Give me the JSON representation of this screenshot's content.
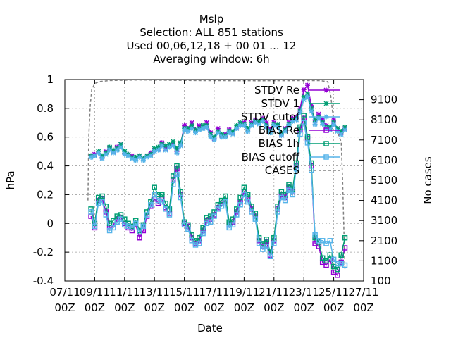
{
  "chart_data": {
    "type": "line",
    "title_lines": [
      "Mslp",
      "Selection: ALL     851 stations",
      "Used  00,06,12,18 + 00 01 ... 12",
      "Averaging window:  6h"
    ],
    "xlabel": "Date",
    "ylabel": "hPa",
    "y2label": "No cases",
    "xlim": [
      7,
      27
    ],
    "ylim": [
      -0.4,
      1.0
    ],
    "y2lim": [
      100,
      10100
    ],
    "x_ticks": [
      {
        "x": 7,
        "line1": "07/11",
        "line2": "00Z"
      },
      {
        "x": 9,
        "line1": "09/11",
        "line2": "00Z"
      },
      {
        "x": 11,
        "line1": "11/11",
        "line2": "00Z"
      },
      {
        "x": 13,
        "line1": "13/11",
        "line2": "00Z"
      },
      {
        "x": 15,
        "line1": "15/11",
        "line2": "00Z"
      },
      {
        "x": 17,
        "line1": "17/11",
        "line2": "00Z"
      },
      {
        "x": 19,
        "line1": "19/11",
        "line2": "00Z"
      },
      {
        "x": 21,
        "line1": "21/11",
        "line2": "00Z"
      },
      {
        "x": 23,
        "line1": "23/11",
        "line2": "00Z"
      },
      {
        "x": 25,
        "line1": "25/11",
        "line2": "00Z"
      },
      {
        "x": 27,
        "line1": "27/11",
        "line2": "00Z"
      }
    ],
    "y_ticks": [
      "-0.4",
      "-0.2",
      "0",
      "0.2",
      "0.4",
      "0.6",
      "0.8",
      "1"
    ],
    "y2_ticks": [
      "100",
      "1100",
      "2100",
      "3100",
      "4100",
      "5100",
      "6100",
      "7100",
      "8100",
      "9100"
    ],
    "grid": true,
    "legend_position": "top-right",
    "x": [
      8.75,
      9.0,
      9.25,
      9.5,
      9.75,
      10.0,
      10.25,
      10.5,
      10.75,
      11.0,
      11.25,
      11.5,
      11.75,
      12.0,
      12.25,
      12.5,
      12.75,
      13.0,
      13.25,
      13.5,
      13.75,
      14.0,
      14.25,
      14.5,
      14.75,
      15.0,
      15.25,
      15.5,
      15.75,
      16.0,
      16.25,
      16.5,
      16.75,
      17.0,
      17.25,
      17.5,
      17.75,
      18.0,
      18.25,
      18.5,
      18.75,
      19.0,
      19.25,
      19.5,
      19.75,
      20.0,
      20.25,
      20.5,
      20.75,
      21.0,
      21.25,
      21.5,
      21.75,
      22.0,
      22.25,
      22.5,
      22.75,
      23.0,
      23.25,
      23.5,
      23.75,
      24.0,
      24.25,
      24.5,
      24.75,
      25.0,
      25.25,
      25.5,
      25.75
    ],
    "series": [
      {
        "name": "STDV Re",
        "color": "#9400d3",
        "marker": "x",
        "y_axis": "left",
        "values": [
          0.47,
          0.48,
          0.49,
          0.46,
          0.5,
          0.52,
          0.5,
          0.53,
          0.55,
          0.49,
          0.48,
          0.47,
          0.45,
          0.47,
          0.45,
          0.47,
          0.49,
          0.51,
          0.52,
          0.56,
          0.52,
          0.54,
          0.55,
          0.5,
          0.55,
          0.68,
          0.66,
          0.7,
          0.65,
          0.68,
          0.67,
          0.7,
          0.63,
          0.59,
          0.66,
          0.61,
          0.62,
          0.65,
          0.63,
          0.67,
          0.69,
          0.7,
          0.65,
          0.7,
          0.72,
          0.7,
          0.73,
          0.7,
          0.65,
          0.7,
          0.68,
          0.62,
          0.66,
          0.7,
          0.73,
          0.74,
          0.8,
          0.93,
          0.96,
          0.82,
          0.7,
          0.76,
          0.72,
          0.68,
          0.66,
          0.72,
          0.65,
          0.63,
          0.66
        ]
      },
      {
        "name": "STDV 1",
        "color": "#009e73",
        "marker": "x",
        "y_axis": "left",
        "values": [
          0.47,
          0.47,
          0.5,
          0.47,
          0.49,
          0.53,
          0.51,
          0.52,
          0.55,
          0.5,
          0.48,
          0.46,
          0.46,
          0.47,
          0.45,
          0.47,
          0.48,
          0.52,
          0.53,
          0.55,
          0.54,
          0.55,
          0.57,
          0.52,
          0.56,
          0.66,
          0.66,
          0.68,
          0.65,
          0.66,
          0.68,
          0.68,
          0.62,
          0.6,
          0.64,
          0.62,
          0.61,
          0.64,
          0.64,
          0.68,
          0.7,
          0.69,
          0.66,
          0.69,
          0.71,
          0.71,
          0.72,
          0.68,
          0.64,
          0.69,
          0.69,
          0.63,
          0.65,
          0.69,
          0.72,
          0.73,
          0.78,
          0.88,
          0.9,
          0.8,
          0.72,
          0.74,
          0.7,
          0.67,
          0.67,
          0.7,
          0.66,
          0.64,
          0.67
        ]
      },
      {
        "name": "STDV cutof",
        "color": "#56b4e9",
        "marker": "x",
        "y_axis": "left",
        "values": [
          0.46,
          0.47,
          0.49,
          0.45,
          0.48,
          0.51,
          0.49,
          0.51,
          0.53,
          0.48,
          0.47,
          0.45,
          0.44,
          0.46,
          0.44,
          0.46,
          0.47,
          0.5,
          0.51,
          0.54,
          0.51,
          0.53,
          0.54,
          0.49,
          0.54,
          0.65,
          0.64,
          0.66,
          0.63,
          0.65,
          0.66,
          0.67,
          0.6,
          0.58,
          0.63,
          0.6,
          0.6,
          0.63,
          0.62,
          0.66,
          0.68,
          0.68,
          0.64,
          0.68,
          0.7,
          0.69,
          0.71,
          0.67,
          0.63,
          0.68,
          0.67,
          0.61,
          0.64,
          0.68,
          0.71,
          0.72,
          0.77,
          0.86,
          0.88,
          0.78,
          0.69,
          0.73,
          0.69,
          0.66,
          0.65,
          0.69,
          0.64,
          0.62,
          0.65
        ]
      },
      {
        "name": "BIAS Re",
        "color": "#9400d3",
        "marker": "square",
        "y_axis": "left",
        "values": [
          0.05,
          -0.03,
          0.16,
          0.17,
          0.08,
          -0.03,
          -0.01,
          0.03,
          0.04,
          0.0,
          -0.03,
          -0.05,
          -0.01,
          -0.1,
          -0.05,
          0.05,
          0.12,
          0.17,
          0.14,
          0.17,
          0.11,
          0.07,
          0.3,
          0.38,
          0.2,
          0.0,
          -0.02,
          -0.1,
          -0.14,
          -0.12,
          -0.05,
          0.02,
          0.03,
          0.06,
          0.11,
          0.14,
          0.16,
          -0.01,
          0.01,
          0.08,
          0.15,
          0.22,
          0.17,
          0.1,
          0.05,
          -0.12,
          -0.16,
          -0.13,
          -0.22,
          -0.12,
          0.1,
          0.2,
          0.18,
          0.25,
          0.22,
          0.4,
          0.65,
          0.73,
          0.59,
          0.4,
          -0.14,
          -0.16,
          -0.27,
          -0.29,
          -0.25,
          -0.34,
          -0.36,
          -0.27,
          -0.17
        ]
      },
      {
        "name": "BIAS 1h",
        "color": "#009e73",
        "marker": "square",
        "y_axis": "left",
        "values": [
          0.1,
          0.0,
          0.18,
          0.19,
          0.12,
          0.0,
          0.02,
          0.05,
          0.06,
          0.03,
          0.0,
          -0.02,
          0.02,
          -0.05,
          -0.01,
          0.08,
          0.15,
          0.25,
          0.2,
          0.2,
          0.14,
          0.1,
          0.33,
          0.4,
          0.22,
          0.01,
          -0.01,
          -0.08,
          -0.12,
          -0.1,
          -0.03,
          0.04,
          0.05,
          0.08,
          0.13,
          0.16,
          0.19,
          0.01,
          0.03,
          0.1,
          0.18,
          0.25,
          0.2,
          0.12,
          0.07,
          -0.1,
          -0.14,
          -0.11,
          -0.2,
          -0.1,
          0.12,
          0.22,
          0.2,
          0.27,
          0.24,
          0.42,
          0.67,
          0.75,
          0.6,
          0.42,
          -0.1,
          -0.13,
          -0.24,
          -0.26,
          -0.22,
          -0.3,
          -0.32,
          -0.22,
          -0.1
        ]
      },
      {
        "name": "BIAS cutoff",
        "color": "#56b4e9",
        "marker": "square",
        "y_axis": "left",
        "values": [
          0.08,
          -0.02,
          0.14,
          0.15,
          0.06,
          -0.05,
          -0.03,
          0.01,
          0.03,
          -0.01,
          -0.02,
          -0.03,
          0.0,
          -0.06,
          -0.02,
          0.06,
          0.13,
          0.2,
          0.16,
          0.15,
          0.1,
          0.06,
          0.27,
          0.34,
          0.18,
          -0.01,
          -0.04,
          -0.12,
          -0.15,
          -0.14,
          -0.07,
          0.0,
          0.01,
          0.05,
          0.1,
          0.12,
          0.15,
          -0.03,
          -0.01,
          0.06,
          0.13,
          0.2,
          0.15,
          0.08,
          0.03,
          -0.14,
          -0.18,
          -0.16,
          -0.23,
          -0.14,
          0.08,
          0.18,
          0.16,
          0.23,
          0.2,
          0.38,
          0.62,
          0.7,
          0.56,
          0.37,
          -0.08,
          -0.12,
          -0.12,
          -0.14,
          -0.12,
          -0.25,
          -0.28,
          -0.28,
          -0.29
        ]
      },
      {
        "name": "CASES",
        "color": "#808080",
        "style": "dashed",
        "y_axis": "right",
        "x": [
          8.55,
          8.6,
          8.7,
          8.8,
          9.0,
          9.3,
          10.0,
          12.0,
          16.0,
          20.0,
          24.0,
          24.6,
          24.8,
          25.0,
          25.5,
          25.6,
          25.7,
          25.75
        ],
        "values": [
          4100,
          7200,
          8800,
          9600,
          9900,
          10000,
          10050,
          10080,
          10050,
          10040,
          10050,
          10000,
          9300,
          8000,
          7000,
          5000,
          2000,
          700
        ]
      }
    ]
  }
}
